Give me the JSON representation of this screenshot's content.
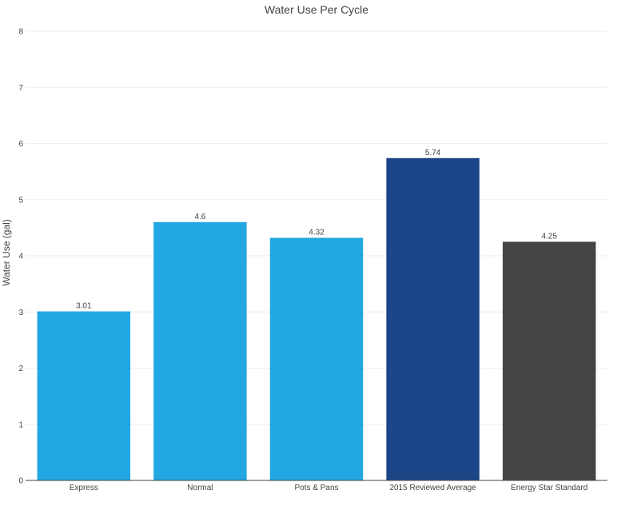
{
  "chart_data": {
    "type": "bar",
    "title": "Water Use Per Cycle",
    "xlabel": "",
    "ylabel": "Water Use (gal)",
    "ylim": [
      0,
      8
    ],
    "yticks": [
      0,
      1,
      2,
      3,
      4,
      5,
      6,
      7,
      8
    ],
    "grid": true,
    "legend": "none",
    "categories": [
      "Express",
      "Normal",
      "Pots & Pans",
      "2015 Reviewed Average",
      "Energy Star Standard"
    ],
    "values": [
      3.01,
      4.6,
      4.32,
      5.74,
      4.25
    ],
    "data_labels": [
      "3.01",
      "4.6",
      "4.32",
      "5.74",
      "4.25"
    ],
    "colors": [
      "#22a7e2",
      "#22a7e2",
      "#22a7e2",
      "#1c4587",
      "#444444"
    ]
  }
}
